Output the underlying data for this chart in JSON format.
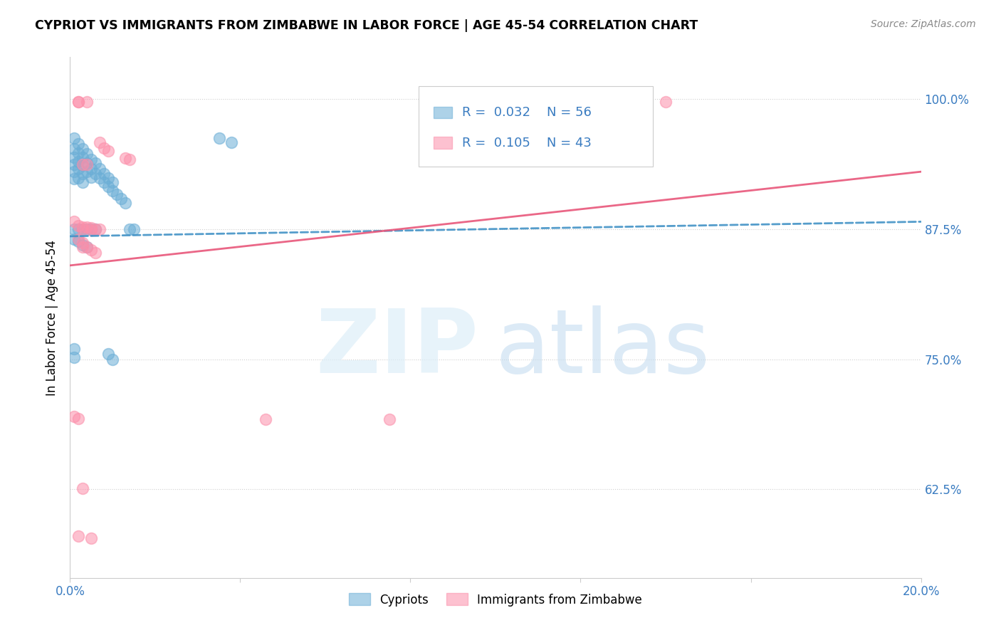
{
  "title": "CYPRIOT VS IMMIGRANTS FROM ZIMBABWE IN LABOR FORCE | AGE 45-54 CORRELATION CHART",
  "source": "Source: ZipAtlas.com",
  "ylabel": "In Labor Force | Age 45-54",
  "xmin": 0.0,
  "xmax": 0.2,
  "ymin": 0.54,
  "ymax": 1.04,
  "cypriot_color": "#6baed6",
  "zimbabwe_color": "#fc8faa",
  "trendline_blue": "#4292c6",
  "trendline_pink": "#e8567a",
  "blue_line_y0": 0.868,
  "blue_line_y1": 0.882,
  "pink_line_y0": 0.84,
  "pink_line_y1": 0.93,
  "blue_x": [
    0.001,
    0.001,
    0.001,
    0.001,
    0.001,
    0.001,
    0.002,
    0.002,
    0.002,
    0.002,
    0.002,
    0.003,
    0.003,
    0.003,
    0.003,
    0.003,
    0.004,
    0.004,
    0.004,
    0.005,
    0.005,
    0.005,
    0.006,
    0.006,
    0.007,
    0.007,
    0.008,
    0.008,
    0.009,
    0.009,
    0.01,
    0.01,
    0.011,
    0.012,
    0.013,
    0.001,
    0.002,
    0.003,
    0.004,
    0.005,
    0.006,
    0.001,
    0.002,
    0.003,
    0.004,
    0.001,
    0.001,
    0.014,
    0.015,
    0.009,
    0.01,
    0.035,
    0.038
  ],
  "blue_y": [
    0.962,
    0.952,
    0.944,
    0.937,
    0.93,
    0.923,
    0.957,
    0.948,
    0.94,
    0.933,
    0.924,
    0.952,
    0.944,
    0.936,
    0.928,
    0.92,
    0.947,
    0.938,
    0.93,
    0.942,
    0.933,
    0.925,
    0.938,
    0.928,
    0.933,
    0.924,
    0.928,
    0.92,
    0.924,
    0.916,
    0.92,
    0.912,
    0.908,
    0.904,
    0.9,
    0.875,
    0.875,
    0.875,
    0.875,
    0.875,
    0.875,
    0.865,
    0.863,
    0.86,
    0.858,
    0.76,
    0.752,
    0.875,
    0.875,
    0.755,
    0.75,
    0.962,
    0.958
  ],
  "pink_x": [
    0.002,
    0.002,
    0.004,
    0.14,
    0.007,
    0.008,
    0.009,
    0.013,
    0.014,
    0.003,
    0.004,
    0.001,
    0.002,
    0.003,
    0.003,
    0.004,
    0.005,
    0.005,
    0.006,
    0.007,
    0.002,
    0.003,
    0.003,
    0.004,
    0.005,
    0.006,
    0.001,
    0.002,
    0.046,
    0.075,
    0.003,
    0.002,
    0.005
  ],
  "pink_y": [
    0.997,
    0.997,
    0.997,
    0.997,
    0.958,
    0.953,
    0.95,
    0.943,
    0.942,
    0.937,
    0.937,
    0.882,
    0.878,
    0.877,
    0.875,
    0.877,
    0.876,
    0.874,
    0.875,
    0.875,
    0.865,
    0.862,
    0.858,
    0.858,
    0.855,
    0.852,
    0.695,
    0.693,
    0.692,
    0.692,
    0.626,
    0.58,
    0.578
  ]
}
